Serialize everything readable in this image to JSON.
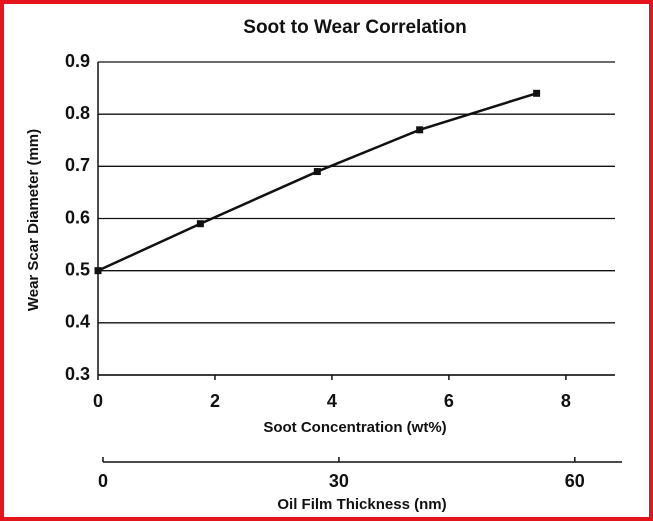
{
  "chart_data": {
    "type": "line",
    "title": "Soot to Wear Correlation",
    "xlabel": "Soot Concentration (wt%)",
    "ylabel": "Wear Scar Diameter (mm)",
    "x": [
      0,
      1.75,
      3.75,
      5.5,
      7.5
    ],
    "values": [
      0.5,
      0.59,
      0.69,
      0.77,
      0.84
    ],
    "color": "#111111",
    "xlim": [
      0,
      8.84
    ],
    "xticks": [
      0,
      2,
      4,
      6,
      8
    ],
    "ylim": [
      0.3,
      0.9
    ],
    "yticks": [
      0.3,
      0.4,
      0.5,
      0.6,
      0.7,
      0.8,
      0.9
    ],
    "grid": true,
    "x2label": "Oil Film Thickness (nm)",
    "x2lim": [
      0,
      66
    ],
    "x2ticks": [
      0,
      30,
      60
    ]
  }
}
